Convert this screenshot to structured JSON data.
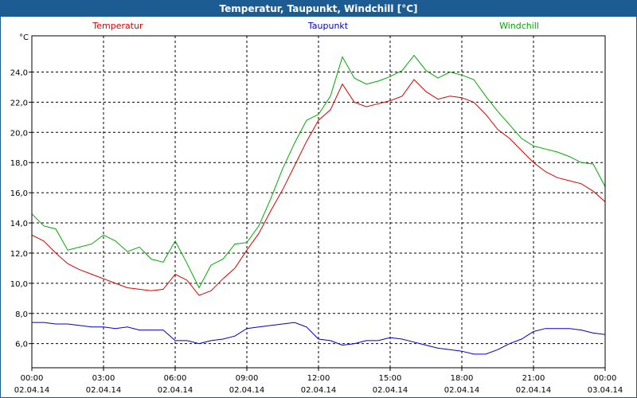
{
  "window": {
    "title": "Temperatur, Taupunkt, Windchill [°C]"
  },
  "chart_data": {
    "type": "line",
    "title": "Temperatur, Taupunkt, Windchill [°C]",
    "ylabel": "°C",
    "ylim": [
      4.4,
      26.4
    ],
    "yticks": [
      "6,0",
      "8,0",
      "10,0",
      "12,0",
      "14,0",
      "16,0",
      "18,0",
      "20,0",
      "22,0",
      "24,0"
    ],
    "ytick_values": [
      6,
      8,
      10,
      12,
      14,
      16,
      18,
      20,
      22,
      24
    ],
    "xlim": [
      0,
      24
    ],
    "xticks": [
      {
        "time": "00:00",
        "date": "02.04.14"
      },
      {
        "time": "03:00",
        "date": "02.04.14"
      },
      {
        "time": "06:00",
        "date": "02.04.14"
      },
      {
        "time": "09:00",
        "date": "02.04.14"
      },
      {
        "time": "12:00",
        "date": "02.04.14"
      },
      {
        "time": "15:00",
        "date": "02.04.14"
      },
      {
        "time": "18:00",
        "date": "02.04.14"
      },
      {
        "time": "21:00",
        "date": "02.04.14"
      },
      {
        "time": "00:00",
        "date": "03.04.14"
      }
    ],
    "grid": true,
    "legend_position": "top",
    "series": [
      {
        "name": "Temperatur",
        "color": "#dd0000",
        "x": [
          0,
          0.5,
          1,
          1.5,
          2,
          2.5,
          3,
          3.5,
          4,
          4.5,
          5,
          5.5,
          6,
          6.5,
          7,
          7.5,
          8,
          8.5,
          9,
          9.5,
          10,
          10.5,
          11,
          11.5,
          12,
          12.5,
          13,
          13.5,
          14,
          14.5,
          15,
          15.5,
          16,
          16.5,
          17,
          17.5,
          18,
          18.5,
          19,
          19.5,
          20,
          20.5,
          21,
          21.5,
          22,
          22.5,
          23,
          23.5,
          24
        ],
        "values": [
          13.2,
          12.8,
          12.0,
          11.3,
          10.9,
          10.6,
          10.3,
          10.0,
          9.7,
          9.6,
          9.5,
          9.6,
          10.6,
          10.2,
          9.2,
          9.5,
          10.3,
          11.0,
          12.2,
          13.3,
          14.8,
          16.2,
          17.8,
          19.4,
          20.8,
          21.5,
          23.2,
          22.0,
          21.7,
          21.9,
          22.1,
          22.4,
          23.5,
          22.7,
          22.2,
          22.4,
          22.3,
          22.0,
          21.2,
          20.2,
          19.6,
          18.8,
          18.0,
          17.4,
          17.0,
          16.8,
          16.6,
          16.1,
          15.4
        ]
      },
      {
        "name": "Taupunkt",
        "color": "#0000cc",
        "x": [
          0,
          0.5,
          1,
          1.5,
          2,
          2.5,
          3,
          3.5,
          4,
          4.5,
          5,
          5.5,
          6,
          6.5,
          7,
          7.5,
          8,
          8.5,
          9,
          9.5,
          10,
          10.5,
          11,
          11.5,
          12,
          12.5,
          13,
          13.5,
          14,
          14.5,
          15,
          15.5,
          16,
          16.5,
          17,
          17.5,
          18,
          18.5,
          19,
          19.5,
          20,
          20.5,
          21,
          21.5,
          22,
          22.5,
          23,
          23.5,
          24
        ],
        "values": [
          7.4,
          7.4,
          7.3,
          7.3,
          7.2,
          7.1,
          7.1,
          7.0,
          7.1,
          6.9,
          6.9,
          6.9,
          6.2,
          6.2,
          6.0,
          6.2,
          6.3,
          6.5,
          7.0,
          7.1,
          7.2,
          7.3,
          7.4,
          7.1,
          6.3,
          6.2,
          5.9,
          6.0,
          6.2,
          6.2,
          6.4,
          6.3,
          6.1,
          5.9,
          5.7,
          5.6,
          5.5,
          5.3,
          5.3,
          5.6,
          6.0,
          6.3,
          6.8,
          7.0,
          7.0,
          7.0,
          6.9,
          6.7,
          6.6
        ]
      },
      {
        "name": "Windchill",
        "color": "#00aa00",
        "x": [
          0,
          0.5,
          1,
          1.5,
          2,
          2.5,
          3,
          3.5,
          4,
          4.5,
          5,
          5.5,
          6,
          6.5,
          7,
          7.5,
          8,
          8.5,
          9,
          9.5,
          10,
          10.5,
          11,
          11.5,
          12,
          12.5,
          13,
          13.5,
          14,
          14.5,
          15,
          15.5,
          16,
          16.5,
          17,
          17.5,
          18,
          18.5,
          19,
          19.5,
          20,
          20.5,
          21,
          21.5,
          22,
          22.5,
          23,
          23.5,
          24
        ],
        "values": [
          14.6,
          13.8,
          13.6,
          12.2,
          12.4,
          12.6,
          13.2,
          12.8,
          12.1,
          12.4,
          11.6,
          11.4,
          12.8,
          11.3,
          9.7,
          11.2,
          11.6,
          12.6,
          12.7,
          13.8,
          15.6,
          17.6,
          19.3,
          20.8,
          21.2,
          22.4,
          25.0,
          23.6,
          23.2,
          23.4,
          23.7,
          24.1,
          25.1,
          24.1,
          23.6,
          24.0,
          23.8,
          23.5,
          22.4,
          21.4,
          20.5,
          19.6,
          19.1,
          18.9,
          18.7,
          18.4,
          18.0,
          17.9,
          16.4
        ]
      }
    ]
  }
}
